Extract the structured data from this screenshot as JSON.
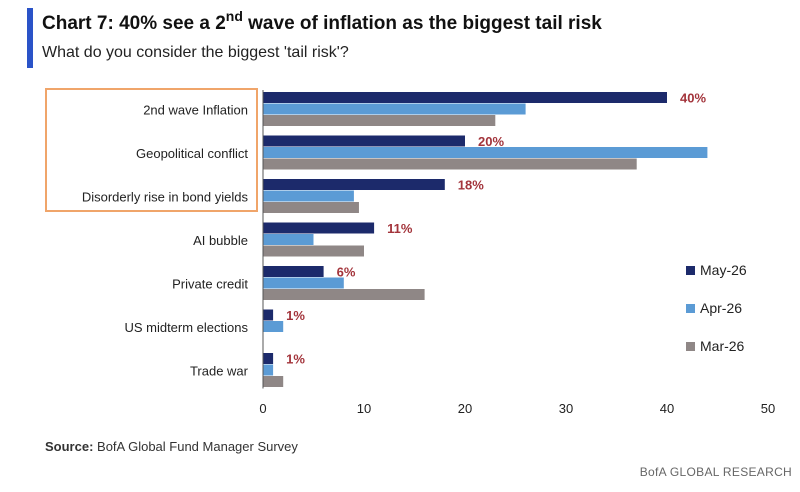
{
  "header": {
    "title_prefix": "Chart 7: 40% see a 2",
    "title_sup": "nd",
    "title_suffix": " wave of inflation as the biggest tail risk",
    "subtitle": "What do you consider the biggest 'tail risk'?"
  },
  "footer": {
    "source_label": "Source:",
    "source_text": " BofA Global Fund Manager Survey",
    "brand": "BofA GLOBAL RESEARCH"
  },
  "colors": {
    "accent": "#2a53c8",
    "may": "#1c2a6b",
    "apr": "#5b9bd5",
    "mar": "#8f8786",
    "label": "#a3343b",
    "highlight_box": "#f0a56a"
  },
  "chart_data": {
    "type": "bar",
    "orientation": "horizontal",
    "categories": [
      "2nd wave Inflation",
      "Geopolitical conflict",
      "Disorderly rise in bond yields",
      "AI bubble",
      "Private credit",
      "US midterm elections",
      "Trade war"
    ],
    "series": [
      {
        "name": "May-26",
        "values": [
          40,
          20,
          18,
          11,
          6,
          1,
          1
        ]
      },
      {
        "name": "Apr-26",
        "values": [
          26,
          44,
          9,
          5,
          8,
          2,
          1
        ]
      },
      {
        "name": "Mar-26",
        "values": [
          23,
          37,
          9.5,
          10,
          16,
          0,
          2
        ]
      }
    ],
    "data_labels": [
      "40%",
      "20%",
      "18%",
      "11%",
      "6%",
      "1%",
      "1%"
    ],
    "xlim": [
      0,
      50
    ],
    "xticks": [
      "0",
      "10",
      "20",
      "30",
      "40",
      "50"
    ],
    "grid": false,
    "legend_position": "right",
    "highlighted_categories": [
      "2nd wave Inflation",
      "Geopolitical conflict",
      "Disorderly rise in bond yields"
    ]
  }
}
